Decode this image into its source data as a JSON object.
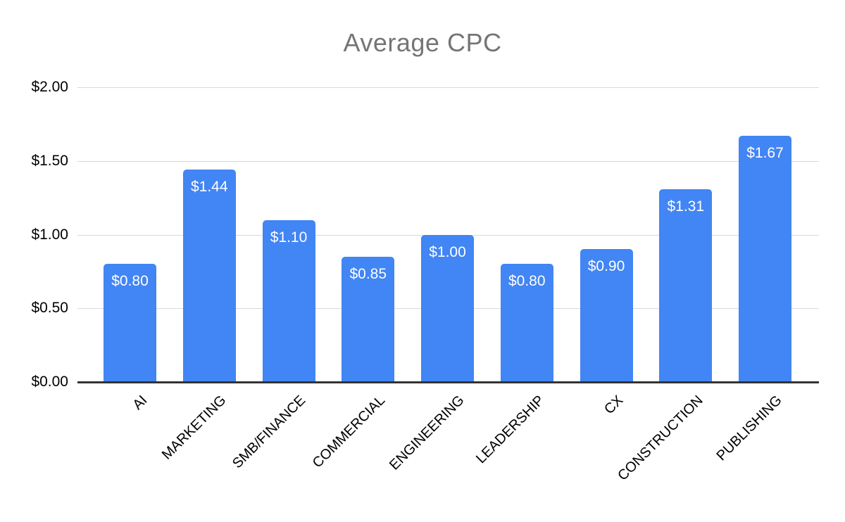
{
  "chart_data": {
    "type": "bar",
    "title": "Average CPC",
    "categories": [
      "AI",
      "MARKETING",
      "SMB/FINANCE",
      "COMMERCIAL",
      "ENGINEERING",
      "LEADERSHIP",
      "CX",
      "CONSTRUCTION",
      "PUBLISHING"
    ],
    "values": [
      0.8,
      1.44,
      1.1,
      0.85,
      1.0,
      0.8,
      0.9,
      1.31,
      1.67
    ],
    "data_labels": [
      "$0.80",
      "$1.44",
      "$1.10",
      "$0.85",
      "$1.00",
      "$0.80",
      "$0.90",
      "$1.31",
      "$1.67"
    ],
    "xlabel": "",
    "ylabel": "",
    "ylim": [
      0,
      2
    ],
    "y_ticks": [
      0,
      0.5,
      1,
      1.5,
      2
    ],
    "y_tick_labels": [
      "$0.00",
      "$0.50",
      "$1.00",
      "$1.50",
      "$2.00"
    ],
    "grid": "horizontal gridlines on",
    "legend": "none",
    "bar_label_position": "inside-top"
  },
  "colors": {
    "bar_fill": "#4285f4",
    "bar_label_text": "#ffffff",
    "title_text": "#757575",
    "tick_label_text": "#000000",
    "gridline": "#d9d9d9",
    "axis_baseline": "#333333",
    "background": "#ffffff"
  }
}
